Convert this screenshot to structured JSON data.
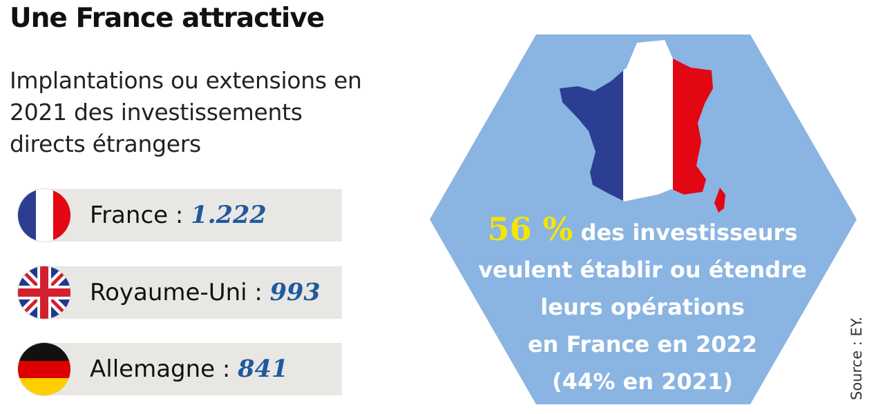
{
  "title": "Une France attractive",
  "subtitle": "Implantations ou extensions en 2021 des investissements directs étrangers",
  "countries": [
    {
      "label": "France : ",
      "value": "1.222",
      "flag_icon": "france-flag-icon"
    },
    {
      "label": "Royaume-Uni : ",
      "value": "993",
      "flag_icon": "uk-flag-icon"
    },
    {
      "label": "Allemagne : ",
      "value": "841",
      "flag_icon": "germany-flag-icon"
    }
  ],
  "highlight": {
    "percent": "56 %",
    "line1": " des investisseurs",
    "line2": "veulent établir ou étendre",
    "line3": "leurs opérations",
    "line4": "en France en 2022",
    "line5": "(44% en 2021)"
  },
  "source": "Source : EY.",
  "colors": {
    "hexagon": "#8ab4e2",
    "value_blue": "#1f5a9e",
    "highlight_yellow": "#f5e600",
    "band_grey": "#e9e7e4",
    "france_blue": "#2c3e91",
    "france_red": "#e30613"
  }
}
